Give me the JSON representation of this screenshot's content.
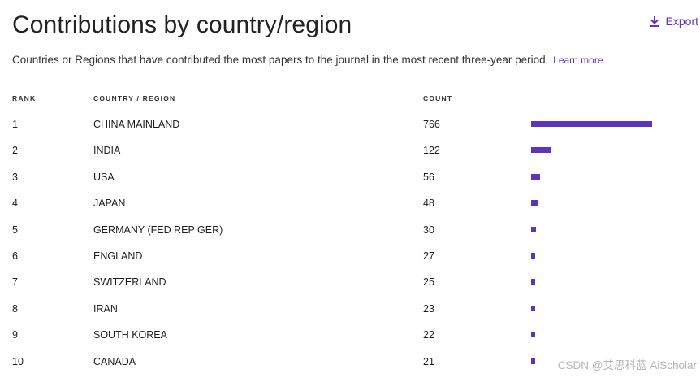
{
  "header": {
    "title": "Contributions by country/region",
    "export_label": "Export",
    "subtitle": "Countries or Regions that have contributed the most papers to the journal in the most recent three-year period.",
    "learn_more": "Learn more"
  },
  "table": {
    "columns": {
      "rank": "RANK",
      "country": "COUNTRY / REGION",
      "count": "COUNT"
    },
    "rows": [
      {
        "rank": "1",
        "country": "CHINA MAINLAND",
        "count": "766"
      },
      {
        "rank": "2",
        "country": "INDIA",
        "count": "122"
      },
      {
        "rank": "3",
        "country": "USA",
        "count": "56"
      },
      {
        "rank": "4",
        "country": "JAPAN",
        "count": "48"
      },
      {
        "rank": "5",
        "country": "GERMANY (FED REP GER)",
        "count": "30"
      },
      {
        "rank": "6",
        "country": "ENGLAND",
        "count": "27"
      },
      {
        "rank": "7",
        "country": "SWITZERLAND",
        "count": "25"
      },
      {
        "rank": "8",
        "country": "IRAN",
        "count": "23"
      },
      {
        "rank": "9",
        "country": "SOUTH KOREA",
        "count": "22"
      },
      {
        "rank": "10",
        "country": "CANADA",
        "count": "21"
      }
    ]
  },
  "watermark": "CSDN @艾思科蓝 AiScholar",
  "colors": {
    "accent": "#5e33bf",
    "text": "#1f1f1f",
    "watermark": "#b5b5b5"
  },
  "icons": {
    "export": "download-icon"
  }
}
